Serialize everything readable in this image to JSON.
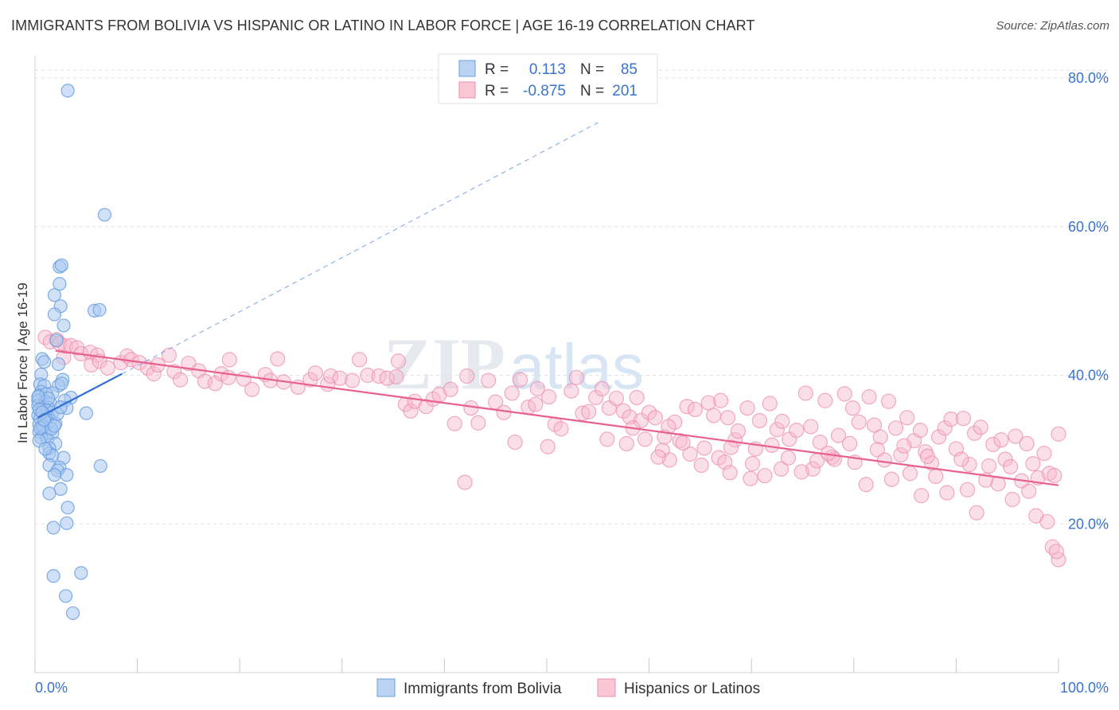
{
  "chart_data": {
    "type": "scatter",
    "title": "IMMIGRANTS FROM BOLIVIA VS HISPANIC OR LATINO IN LABOR FORCE | AGE 16-19 CORRELATION CHART",
    "source": "Source: ZipAtlas.com",
    "ylabel": "In Labor Force | Age 16-19",
    "xlabel": "",
    "xlim": [
      0,
      100
    ],
    "ylim": [
      0,
      83
    ],
    "x_tick_labels": [
      "0.0%",
      "100.0%"
    ],
    "y_ticks": [
      20,
      40,
      60,
      80
    ],
    "y_tick_labels": [
      "20.0%",
      "40.0%",
      "60.0%",
      "80.0%"
    ],
    "grid": true,
    "legend_position": "top-center",
    "watermark": {
      "zip": "ZIP",
      "atlas": "atlas"
    },
    "colors": {
      "blue_fill": "#aac8f0",
      "blue_stroke": "#6a9fe0",
      "blue_line": "#2f6fd6",
      "pink_fill": "#f6b8cb",
      "pink_stroke": "#ec8fae",
      "pink_line": "#e8608f",
      "value_text": "#3a73cc",
      "grid": "#dde3ea"
    },
    "stats": [
      {
        "r_label": "R =",
        "r_value": "0.113",
        "n_label": "N =",
        "n_value": "85"
      },
      {
        "r_label": "R =",
        "r_value": "-0.875",
        "n_label": "N =",
        "n_value": "201"
      }
    ],
    "series": [
      {
        "name": "Immigrants from Bolivia",
        "trend": {
          "x": [
            0.3,
            8.5
          ],
          "y": [
            34.3,
            40.2
          ],
          "dashed_to": [
            55,
            74.0
          ]
        },
        "points": [
          [
            3.2,
            78.3
          ],
          [
            6.8,
            61.6
          ],
          [
            2.4,
            54.6
          ],
          [
            2.6,
            54.8
          ],
          [
            2.4,
            52.3
          ],
          [
            1.9,
            50.8
          ],
          [
            2.5,
            49.3
          ],
          [
            5.8,
            48.7
          ],
          [
            6.3,
            48.8
          ],
          [
            1.9,
            48.2
          ],
          [
            2.8,
            46.7
          ],
          [
            2.1,
            44.7
          ],
          [
            0.7,
            42.2
          ],
          [
            0.9,
            41.8
          ],
          [
            2.3,
            41.5
          ],
          [
            0.6,
            40.1
          ],
          [
            2.7,
            39.4
          ],
          [
            0.5,
            38.8
          ],
          [
            0.9,
            38.6
          ],
          [
            2.3,
            38.6
          ],
          [
            2.6,
            38.9
          ],
          [
            0.6,
            37.8
          ],
          [
            1.7,
            37.6
          ],
          [
            0.4,
            37.3
          ],
          [
            1.1,
            37.5
          ],
          [
            3.5,
            37.0
          ],
          [
            0.3,
            36.6
          ],
          [
            1.0,
            36.4
          ],
          [
            1.5,
            36.2
          ],
          [
            2.9,
            36.6
          ],
          [
            0.3,
            35.9
          ],
          [
            0.8,
            35.8
          ],
          [
            1.3,
            35.6
          ],
          [
            3.1,
            35.6
          ],
          [
            0.6,
            35.3
          ],
          [
            1.1,
            35.3
          ],
          [
            1.7,
            35.0
          ],
          [
            5.0,
            34.9
          ],
          [
            0.3,
            34.6
          ],
          [
            0.9,
            34.5
          ],
          [
            1.3,
            34.4
          ],
          [
            0.5,
            34.2
          ],
          [
            1.5,
            33.9
          ],
          [
            0.4,
            33.4
          ],
          [
            1.1,
            33.6
          ],
          [
            2.0,
            33.5
          ],
          [
            0.7,
            33.0
          ],
          [
            0.4,
            32.4
          ],
          [
            1.0,
            32.1
          ],
          [
            1.7,
            32.2
          ],
          [
            0.6,
            31.6
          ],
          [
            1.2,
            31.4
          ],
          [
            0.4,
            31.2
          ],
          [
            2.0,
            30.8
          ],
          [
            1.4,
            30.2
          ],
          [
            1.4,
            29.5
          ],
          [
            1.7,
            29.2
          ],
          [
            2.8,
            28.9
          ],
          [
            1.4,
            27.9
          ],
          [
            6.4,
            27.8
          ],
          [
            2.4,
            27.6
          ],
          [
            2.2,
            27.2
          ],
          [
            3.1,
            26.6
          ],
          [
            1.9,
            26.6
          ],
          [
            2.5,
            24.7
          ],
          [
            1.4,
            24.1
          ],
          [
            3.2,
            22.2
          ],
          [
            3.1,
            20.1
          ],
          [
            1.8,
            19.5
          ],
          [
            4.5,
            13.4
          ],
          [
            1.8,
            13.0
          ],
          [
            3.0,
            10.3
          ],
          [
            3.7,
            8.0
          ],
          [
            0.4,
            35.4
          ],
          [
            0.8,
            33.1
          ],
          [
            1.3,
            36.9
          ],
          [
            2.2,
            34.8
          ],
          [
            0.5,
            32.9
          ],
          [
            1.0,
            30.1
          ],
          [
            1.6,
            32.8
          ],
          [
            0.3,
            37.1
          ],
          [
            0.7,
            35.0
          ],
          [
            1.9,
            33.2
          ],
          [
            2.5,
            35.7
          ],
          [
            0.9,
            34.0
          ]
        ]
      },
      {
        "name": "Hispanics or Latinos",
        "trend": {
          "x": [
            2.0,
            100.0
          ],
          "y": [
            43.3,
            25.2
          ]
        },
        "points": [
          [
            1.0,
            45.1
          ],
          [
            2.1,
            44.8
          ],
          [
            1.5,
            44.5
          ],
          [
            2.4,
            44.3
          ],
          [
            3.0,
            43.9
          ],
          [
            3.5,
            44.0
          ],
          [
            4.1,
            43.7
          ],
          [
            2.8,
            42.4
          ],
          [
            4.5,
            42.9
          ],
          [
            5.4,
            43.1
          ],
          [
            6.1,
            42.7
          ],
          [
            5.5,
            41.4
          ],
          [
            6.3,
            41.9
          ],
          [
            7.1,
            41.0
          ],
          [
            8.4,
            41.7
          ],
          [
            9.0,
            42.6
          ],
          [
            9.4,
            42.1
          ],
          [
            10.2,
            41.7
          ],
          [
            11.0,
            41.0
          ],
          [
            11.6,
            40.2
          ],
          [
            12.0,
            41.4
          ],
          [
            13.1,
            42.7
          ],
          [
            13.6,
            40.5
          ],
          [
            14.2,
            39.4
          ],
          [
            15.0,
            41.6
          ],
          [
            16.0,
            40.6
          ],
          [
            16.6,
            39.2
          ],
          [
            17.6,
            38.9
          ],
          [
            18.2,
            40.2
          ],
          [
            18.9,
            39.7
          ],
          [
            19.0,
            42.1
          ],
          [
            20.4,
            39.5
          ],
          [
            21.2,
            38.1
          ],
          [
            22.5,
            40.1
          ],
          [
            23.0,
            39.3
          ],
          [
            23.7,
            42.2
          ],
          [
            24.3,
            39.1
          ],
          [
            25.7,
            38.4
          ],
          [
            26.9,
            39.4
          ],
          [
            27.4,
            40.3
          ],
          [
            28.6,
            38.8
          ],
          [
            28.9,
            39.9
          ],
          [
            29.8,
            39.6
          ],
          [
            31.0,
            39.3
          ],
          [
            31.7,
            42.1
          ],
          [
            32.5,
            40.0
          ],
          [
            33.6,
            39.9
          ],
          [
            34.4,
            39.6
          ],
          [
            35.3,
            39.8
          ],
          [
            35.5,
            41.9
          ],
          [
            36.2,
            36.1
          ],
          [
            36.7,
            35.2
          ],
          [
            37.1,
            36.5
          ],
          [
            38.2,
            35.8
          ],
          [
            38.9,
            36.8
          ],
          [
            39.5,
            37.4
          ],
          [
            40.6,
            38.1
          ],
          [
            41.0,
            33.5
          ],
          [
            42.2,
            39.9
          ],
          [
            42.6,
            35.6
          ],
          [
            43.3,
            33.6
          ],
          [
            44.3,
            39.3
          ],
          [
            45.0,
            36.4
          ],
          [
            45.8,
            35.0
          ],
          [
            46.6,
            37.6
          ],
          [
            47.4,
            39.4
          ],
          [
            48.2,
            35.7
          ],
          [
            48.9,
            36.1
          ],
          [
            49.1,
            38.2
          ],
          [
            50.2,
            37.1
          ],
          [
            50.8,
            33.4
          ],
          [
            51.4,
            32.8
          ],
          [
            52.4,
            37.9
          ],
          [
            52.9,
            39.7
          ],
          [
            53.5,
            34.9
          ],
          [
            54.1,
            35.1
          ],
          [
            54.8,
            37.0
          ],
          [
            55.4,
            38.2
          ],
          [
            56.1,
            35.6
          ],
          [
            56.8,
            36.9
          ],
          [
            57.5,
            35.2
          ],
          [
            58.1,
            34.4
          ],
          [
            58.8,
            37.0
          ],
          [
            59.2,
            33.9
          ],
          [
            60.0,
            35.0
          ],
          [
            60.6,
            34.3
          ],
          [
            61.3,
            29.9
          ],
          [
            61.5,
            31.7
          ],
          [
            62.5,
            33.7
          ],
          [
            63.0,
            31.2
          ],
          [
            63.7,
            35.8
          ],
          [
            64.5,
            35.4
          ],
          [
            65.1,
            27.9
          ],
          [
            65.8,
            36.3
          ],
          [
            66.3,
            34.6
          ],
          [
            67.0,
            36.6
          ],
          [
            67.7,
            34.3
          ],
          [
            68.4,
            31.3
          ],
          [
            68.7,
            32.5
          ],
          [
            69.6,
            35.6
          ],
          [
            70.4,
            30.1
          ],
          [
            70.8,
            33.9
          ],
          [
            71.8,
            36.2
          ],
          [
            72.5,
            32.7
          ],
          [
            73.0,
            33.8
          ],
          [
            73.7,
            31.4
          ],
          [
            74.4,
            32.6
          ],
          [
            75.3,
            37.6
          ],
          [
            75.8,
            33.1
          ],
          [
            76.7,
            31.0
          ],
          [
            77.2,
            36.6
          ],
          [
            77.9,
            29.0
          ],
          [
            78.5,
            31.9
          ],
          [
            79.1,
            37.5
          ],
          [
            79.9,
            35.6
          ],
          [
            80.5,
            33.7
          ],
          [
            81.5,
            37.1
          ],
          [
            82.0,
            33.3
          ],
          [
            82.6,
            31.7
          ],
          [
            83.4,
            36.5
          ],
          [
            84.1,
            32.9
          ],
          [
            84.6,
            29.3
          ],
          [
            85.2,
            34.3
          ],
          [
            85.9,
            31.2
          ],
          [
            86.5,
            32.6
          ],
          [
            87.0,
            29.7
          ],
          [
            87.6,
            28.2
          ],
          [
            88.3,
            31.7
          ],
          [
            88.9,
            32.9
          ],
          [
            89.5,
            34.1
          ],
          [
            90.0,
            30.1
          ],
          [
            90.7,
            34.2
          ],
          [
            91.3,
            28.0
          ],
          [
            91.8,
            32.2
          ],
          [
            92.4,
            33.0
          ],
          [
            92.9,
            25.9
          ],
          [
            93.6,
            30.7
          ],
          [
            94.4,
            31.3
          ],
          [
            94.8,
            28.7
          ],
          [
            95.3,
            27.7
          ],
          [
            95.8,
            31.8
          ],
          [
            96.4,
            25.8
          ],
          [
            96.9,
            30.8
          ],
          [
            97.5,
            28.1
          ],
          [
            98.0,
            26.2
          ],
          [
            98.6,
            29.5
          ],
          [
            99.1,
            26.8
          ],
          [
            99.6,
            26.5
          ],
          [
            100.0,
            32.1
          ],
          [
            100.0,
            15.2
          ],
          [
            42.0,
            25.6
          ],
          [
            46.9,
            31.0
          ],
          [
            50.1,
            30.4
          ],
          [
            55.9,
            31.4
          ],
          [
            62.0,
            28.6
          ],
          [
            66.8,
            28.9
          ],
          [
            72.0,
            30.6
          ],
          [
            78.1,
            28.7
          ],
          [
            83.7,
            26.0
          ],
          [
            89.1,
            24.2
          ],
          [
            93.2,
            27.8
          ],
          [
            95.5,
            23.3
          ],
          [
            97.8,
            21.1
          ],
          [
            98.9,
            20.3
          ],
          [
            99.4,
            16.9
          ],
          [
            99.8,
            16.3
          ],
          [
            92.0,
            21.5
          ],
          [
            86.6,
            23.8
          ],
          [
            81.2,
            25.3
          ],
          [
            76.0,
            27.4
          ],
          [
            71.3,
            26.5
          ],
          [
            67.4,
            28.3
          ],
          [
            64.0,
            29.4
          ],
          [
            60.9,
            29.0
          ],
          [
            57.8,
            30.8
          ],
          [
            90.5,
            28.7
          ],
          [
            88.0,
            26.4
          ],
          [
            85.5,
            26.8
          ],
          [
            83.0,
            28.6
          ],
          [
            80.1,
            28.3
          ],
          [
            77.5,
            29.5
          ],
          [
            74.9,
            27.0
          ],
          [
            72.9,
            27.4
          ],
          [
            69.9,
            26.1
          ],
          [
            67.9,
            26.9
          ],
          [
            97.1,
            24.4
          ],
          [
            94.1,
            25.4
          ],
          [
            91.1,
            24.6
          ],
          [
            87.2,
            29.1
          ],
          [
            84.9,
            30.5
          ],
          [
            82.3,
            30.0
          ],
          [
            79.6,
            30.8
          ],
          [
            76.4,
            28.5
          ],
          [
            73.6,
            28.9
          ],
          [
            70.1,
            28.1
          ],
          [
            68.0,
            30.3
          ],
          [
            65.4,
            30.2
          ],
          [
            63.3,
            30.9
          ],
          [
            61.9,
            33.1
          ],
          [
            59.6,
            31.4
          ],
          [
            58.4,
            32.9
          ]
        ]
      }
    ]
  }
}
